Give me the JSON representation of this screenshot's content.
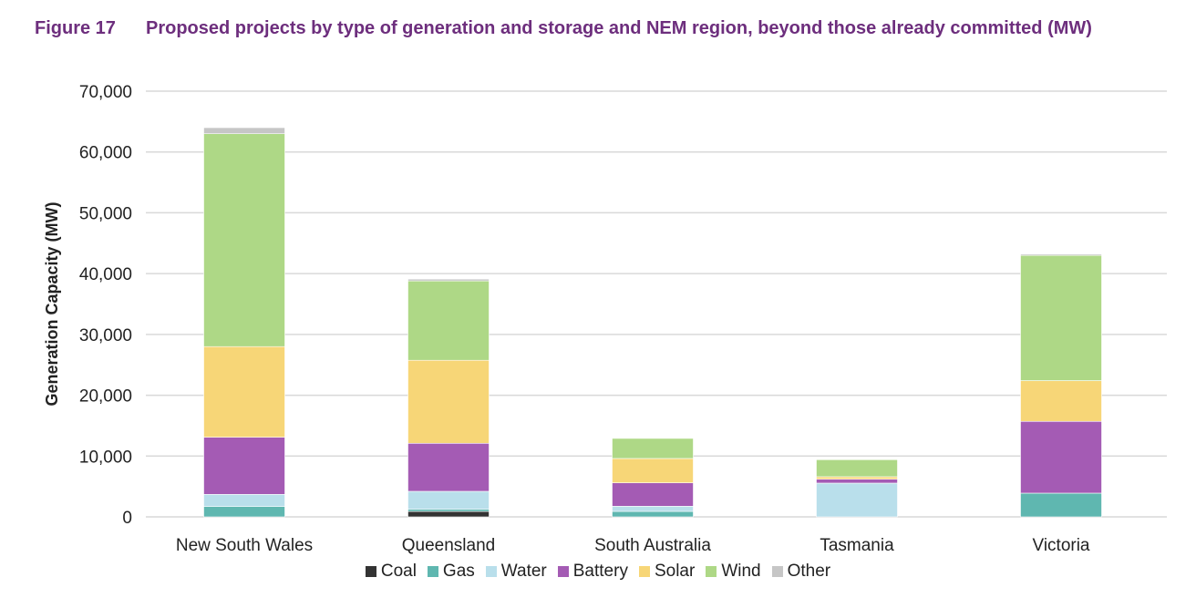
{
  "figure_label": "Figure 17",
  "chart_data": {
    "type": "bar",
    "stacked": true,
    "title": "Proposed projects by type of generation and storage and NEM region, beyond those already committed (MW)",
    "xlabel": "",
    "ylabel": "Generation Capacity (MW)",
    "ylim": [
      0,
      70000
    ],
    "yticks": [
      "0",
      "10,000",
      "20,000",
      "30,000",
      "40,000",
      "50,000",
      "60,000",
      "70,000"
    ],
    "grid": true,
    "legend_position": "bottom",
    "categories": [
      "New South Wales",
      "Queensland",
      "South Australia",
      "Tasmania",
      "Victoria"
    ],
    "series": [
      {
        "name": "Coal",
        "color": "#333333",
        "values": [
          0,
          900,
          0,
          0,
          0
        ]
      },
      {
        "name": "Gas",
        "color": "#5fb7b0",
        "values": [
          1700,
          350,
          900,
          0,
          3900
        ]
      },
      {
        "name": "Water",
        "color": "#b9dfeb",
        "values": [
          2000,
          2950,
          850,
          5550,
          0
        ]
      },
      {
        "name": "Battery",
        "color": "#a45bb4",
        "values": [
          9400,
          7900,
          3850,
          650,
          11800
        ]
      },
      {
        "name": "Solar",
        "color": "#f7d677",
        "values": [
          14900,
          13650,
          4000,
          400,
          6700
        ]
      },
      {
        "name": "Wind",
        "color": "#aed886",
        "values": [
          35000,
          13050,
          3300,
          2800,
          20600
        ]
      },
      {
        "name": "Other",
        "color": "#c6c6c6",
        "values": [
          1000,
          300,
          0,
          0,
          200
        ]
      }
    ]
  }
}
